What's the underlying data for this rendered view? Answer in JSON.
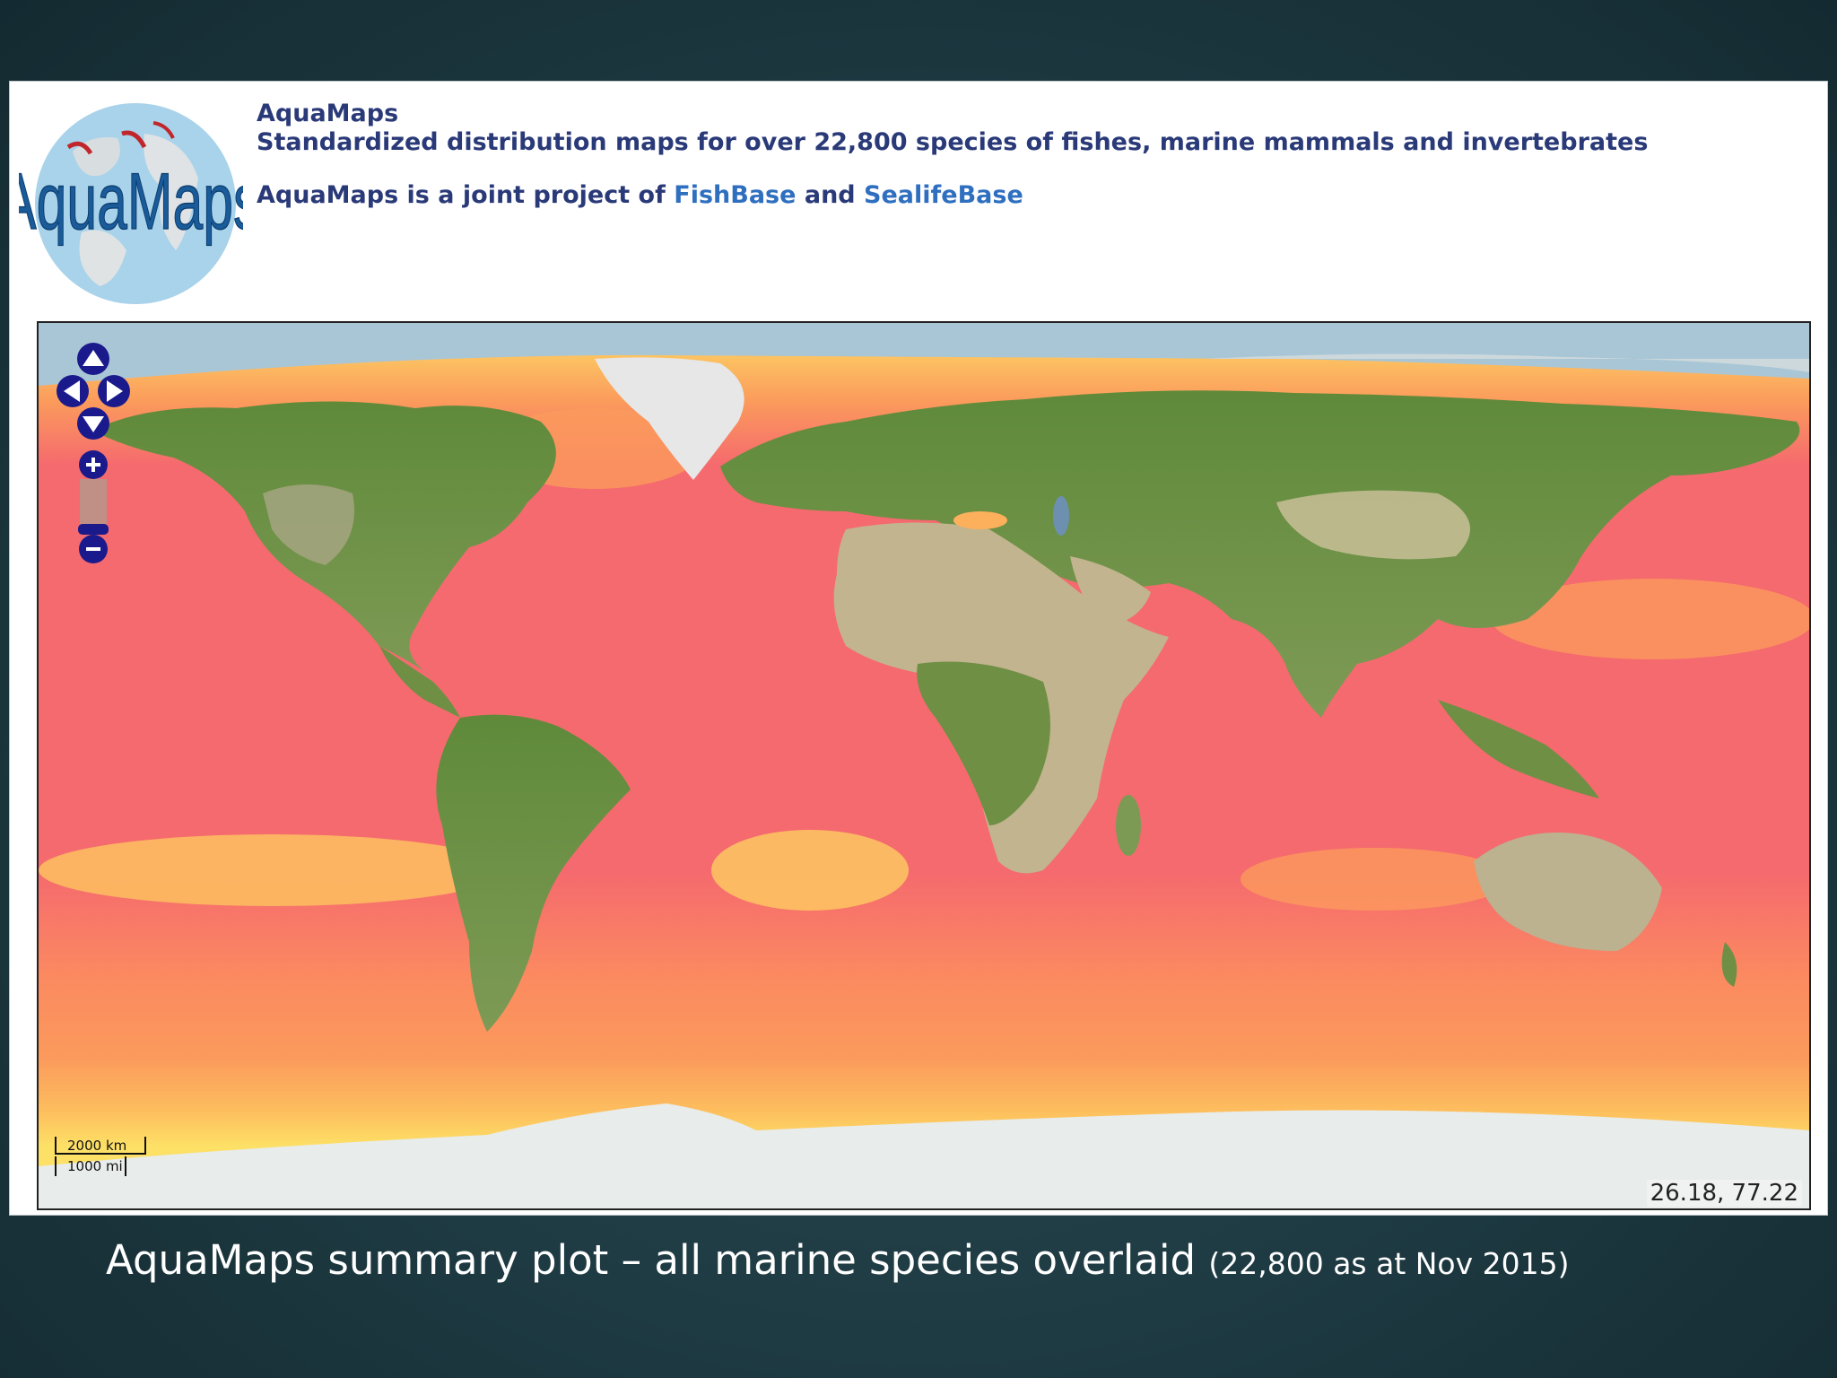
{
  "header": {
    "logo_text": "AquaMaps",
    "site_name": "AquaMaps",
    "tagline": "Standardized distribution maps for over 22,800 species of fishes, marine mammals and invertebrates",
    "partners_prefix": "AquaMaps is a joint project of",
    "partner_1": "FishBase",
    "partners_and": "and",
    "partner_2": "SealifeBase"
  },
  "map": {
    "scale_km": "2000 km",
    "scale_mi": "1000 mi",
    "coordinates": "26.18, 77.22",
    "colors": {
      "ocean_high": "#f56a6e",
      "ocean_mid": "#fb9a5c",
      "ocean_low": "#fde066",
      "land": "#6f8f45",
      "desert": "#bdb28a",
      "ice": "#e8ecea",
      "arctic_sea": "#a9c6d6",
      "control_blue": "#1a1a8c"
    }
  },
  "caption": {
    "main": "AquaMaps summary plot – all marine species overlaid",
    "note": "(22,800 as at Nov 2015)"
  }
}
